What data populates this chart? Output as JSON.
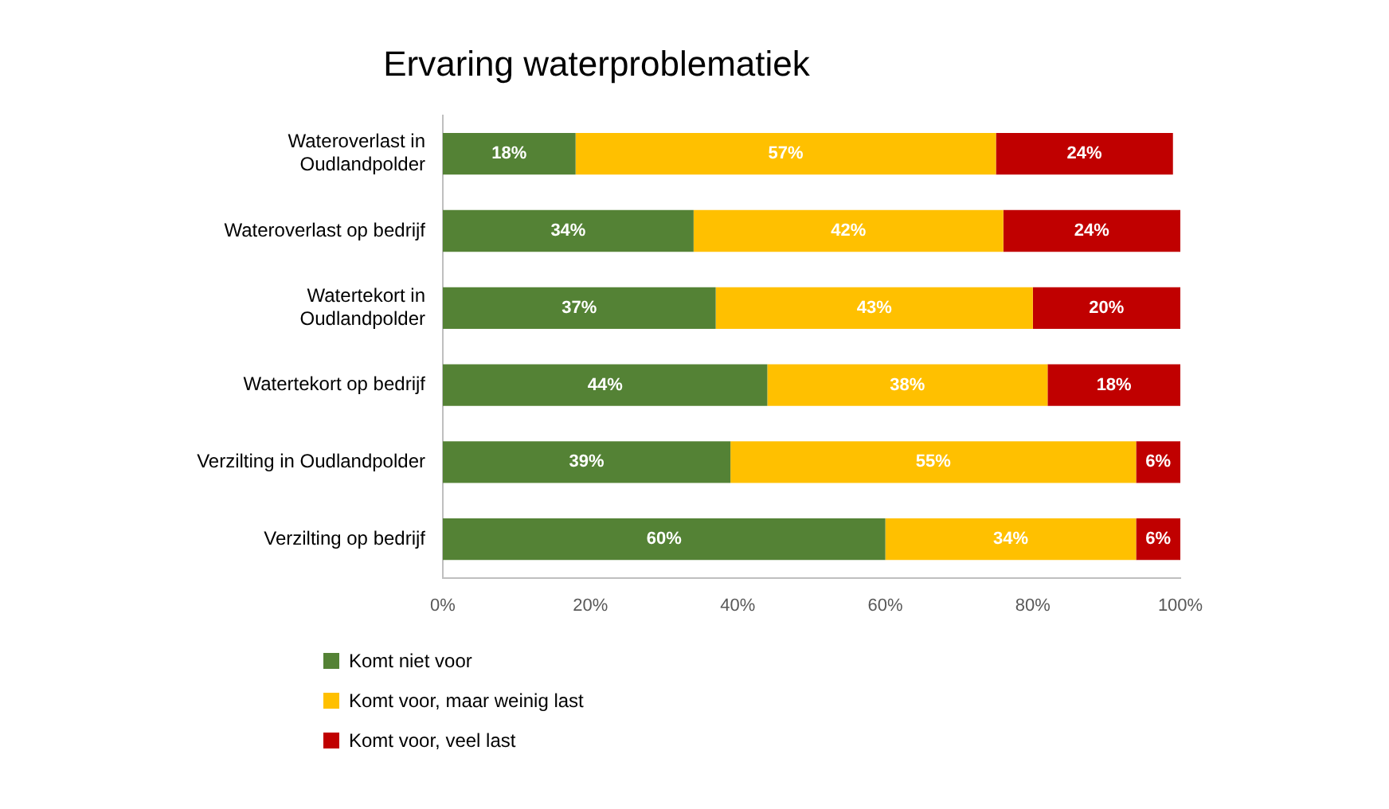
{
  "chart_data": {
    "type": "bar",
    "title": "Ervaring waterproblematiek",
    "orientation": "horizontal",
    "stacked": true,
    "grid": false,
    "legend": "bottom left",
    "categories": [
      "Wateroverlast in Oudlandpolder",
      "Wateroverlast op bedrijf",
      "Watertekort in Oudlandpolder",
      "Watertekort op bedrijf",
      "Verzilting in Oudlandpolder",
      "Verzilting op bedrijf"
    ],
    "series": [
      {
        "name": "Komt niet voor",
        "color": "#548235",
        "values": [
          18,
          34,
          37,
          44,
          39,
          60
        ],
        "value_labels": [
          "18%",
          "34%",
          "37%",
          "44%",
          "39%",
          "60%"
        ]
      },
      {
        "name": "Komt voor, maar weinig last",
        "color": "#ffc000",
        "values": [
          57,
          42,
          43,
          38,
          55,
          34
        ],
        "value_labels": [
          "57%",
          "42%",
          "43%",
          "38%",
          "55%",
          "34%"
        ]
      },
      {
        "name": "Komt voor, veel last",
        "color": "#c00000",
        "values": [
          24,
          24,
          20,
          18,
          6,
          6
        ],
        "value_labels": [
          "24%",
          "24%",
          "20%",
          "18%",
          "6%",
          "6%"
        ]
      }
    ],
    "xlim": [
      0,
      100
    ],
    "xticks": [
      {
        "value": 0,
        "label": "0%"
      },
      {
        "value": 20,
        "label": "20%"
      },
      {
        "value": 40,
        "label": "40%"
      },
      {
        "value": 60,
        "label": "60%"
      },
      {
        "value": 80,
        "label": "80%"
      },
      {
        "value": 100,
        "label": "100%"
      }
    ]
  }
}
